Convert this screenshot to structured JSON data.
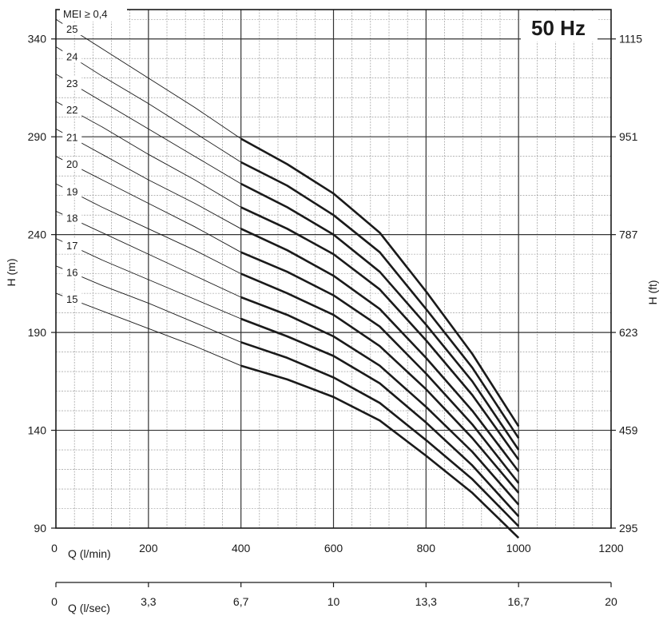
{
  "chart_data": {
    "type": "line",
    "title": "",
    "badge": "50 Hz",
    "annotation": "MEI ≥ 0,4",
    "ylabel_left": "H (m)",
    "ylabel_right": "H (ft)",
    "xlabel_primary": "Q (l/min)",
    "xlabel_secondary": "Q (l/sec)",
    "xlim": [
      0,
      1200
    ],
    "ylim": [
      90,
      355
    ],
    "x_ticks": [
      {
        "value": 0,
        "label": "0"
      },
      {
        "value": 200,
        "label": "200"
      },
      {
        "value": 400,
        "label": "400"
      },
      {
        "value": 600,
        "label": "600"
      },
      {
        "value": 800,
        "label": "800"
      },
      {
        "value": 1000,
        "label": "1000"
      },
      {
        "value": 1200,
        "label": "1200"
      }
    ],
    "x_ticks_secondary": [
      {
        "value": 0,
        "label": "0"
      },
      {
        "value": 200,
        "label": "3,3"
      },
      {
        "value": 400,
        "label": "6,7"
      },
      {
        "value": 600,
        "label": "10"
      },
      {
        "value": 800,
        "label": "13,3"
      },
      {
        "value": 1000,
        "label": "16,7"
      },
      {
        "value": 1200,
        "label": "20"
      }
    ],
    "y_ticks_left": [
      {
        "value": 90,
        "label": "90"
      },
      {
        "value": 140,
        "label": "140"
      },
      {
        "value": 190,
        "label": "190"
      },
      {
        "value": 240,
        "label": "240"
      },
      {
        "value": 290,
        "label": "290"
      },
      {
        "value": 340,
        "label": "340"
      }
    ],
    "y_ticks_right": [
      {
        "value": 90,
        "label": "295"
      },
      {
        "value": 140,
        "label": "459"
      },
      {
        "value": 190,
        "label": "623"
      },
      {
        "value": 240,
        "label": "787"
      },
      {
        "value": 290,
        "label": "951"
      },
      {
        "value": 340,
        "label": "1115"
      }
    ],
    "grid": true,
    "operating_range": [
      400,
      1000
    ],
    "series": [
      {
        "name": "15",
        "x": [
          0,
          100,
          200,
          300,
          400,
          500,
          600,
          700,
          800,
          900,
          1000
        ],
        "y": [
          210,
          201,
          192,
          183,
          173,
          166,
          157,
          145,
          127,
          108,
          85
        ]
      },
      {
        "name": "16",
        "x": [
          0,
          100,
          200,
          300,
          400,
          500,
          600,
          700,
          800,
          900,
          1000
        ],
        "y": [
          224,
          214,
          205,
          195,
          185,
          177,
          167,
          154,
          135,
          115,
          91
        ]
      },
      {
        "name": "17",
        "x": [
          0,
          100,
          200,
          300,
          400,
          500,
          600,
          700,
          800,
          900,
          1000
        ],
        "y": [
          238,
          227,
          217,
          207,
          197,
          188,
          178,
          164,
          144,
          122,
          96
        ]
      },
      {
        "name": "18",
        "x": [
          0,
          100,
          200,
          300,
          400,
          500,
          600,
          700,
          800,
          900,
          1000
        ],
        "y": [
          252,
          241,
          230,
          219,
          208,
          199,
          188,
          173,
          152,
          129,
          102
        ]
      },
      {
        "name": "19",
        "x": [
          0,
          100,
          200,
          300,
          400,
          500,
          600,
          700,
          800,
          900,
          1000
        ],
        "y": [
          266,
          254,
          243,
          232,
          220,
          210,
          199,
          183,
          161,
          136,
          108
        ]
      },
      {
        "name": "20",
        "x": [
          0,
          100,
          200,
          300,
          400,
          500,
          600,
          700,
          800,
          900,
          1000
        ],
        "y": [
          280,
          268,
          256,
          244,
          231,
          221,
          209,
          193,
          169,
          143,
          113
        ]
      },
      {
        "name": "21",
        "x": [
          0,
          100,
          200,
          300,
          400,
          500,
          600,
          700,
          800,
          900,
          1000
        ],
        "y": [
          294,
          281,
          268,
          256,
          243,
          232,
          219,
          202,
          177,
          150,
          119
        ]
      },
      {
        "name": "22",
        "x": [
          0,
          100,
          200,
          300,
          400,
          500,
          600,
          700,
          800,
          900,
          1000
        ],
        "y": [
          308,
          295,
          281,
          268,
          254,
          243,
          230,
          212,
          186,
          158,
          125
        ]
      },
      {
        "name": "23",
        "x": [
          0,
          100,
          200,
          300,
          400,
          500,
          600,
          700,
          800,
          900,
          1000
        ],
        "y": [
          322,
          308,
          294,
          280,
          266,
          254,
          240,
          221,
          194,
          165,
          130
        ]
      },
      {
        "name": "24",
        "x": [
          0,
          100,
          200,
          300,
          400,
          500,
          600,
          700,
          800,
          900,
          1000
        ],
        "y": [
          336,
          321,
          307,
          292,
          277,
          265,
          250,
          231,
          202,
          172,
          136
        ]
      },
      {
        "name": "25",
        "x": [
          0,
          100,
          200,
          300,
          400,
          500,
          600,
          700,
          800,
          900,
          1000
        ],
        "y": [
          350,
          335,
          320,
          305,
          289,
          276,
          261,
          241,
          211,
          179,
          142
        ]
      }
    ]
  }
}
